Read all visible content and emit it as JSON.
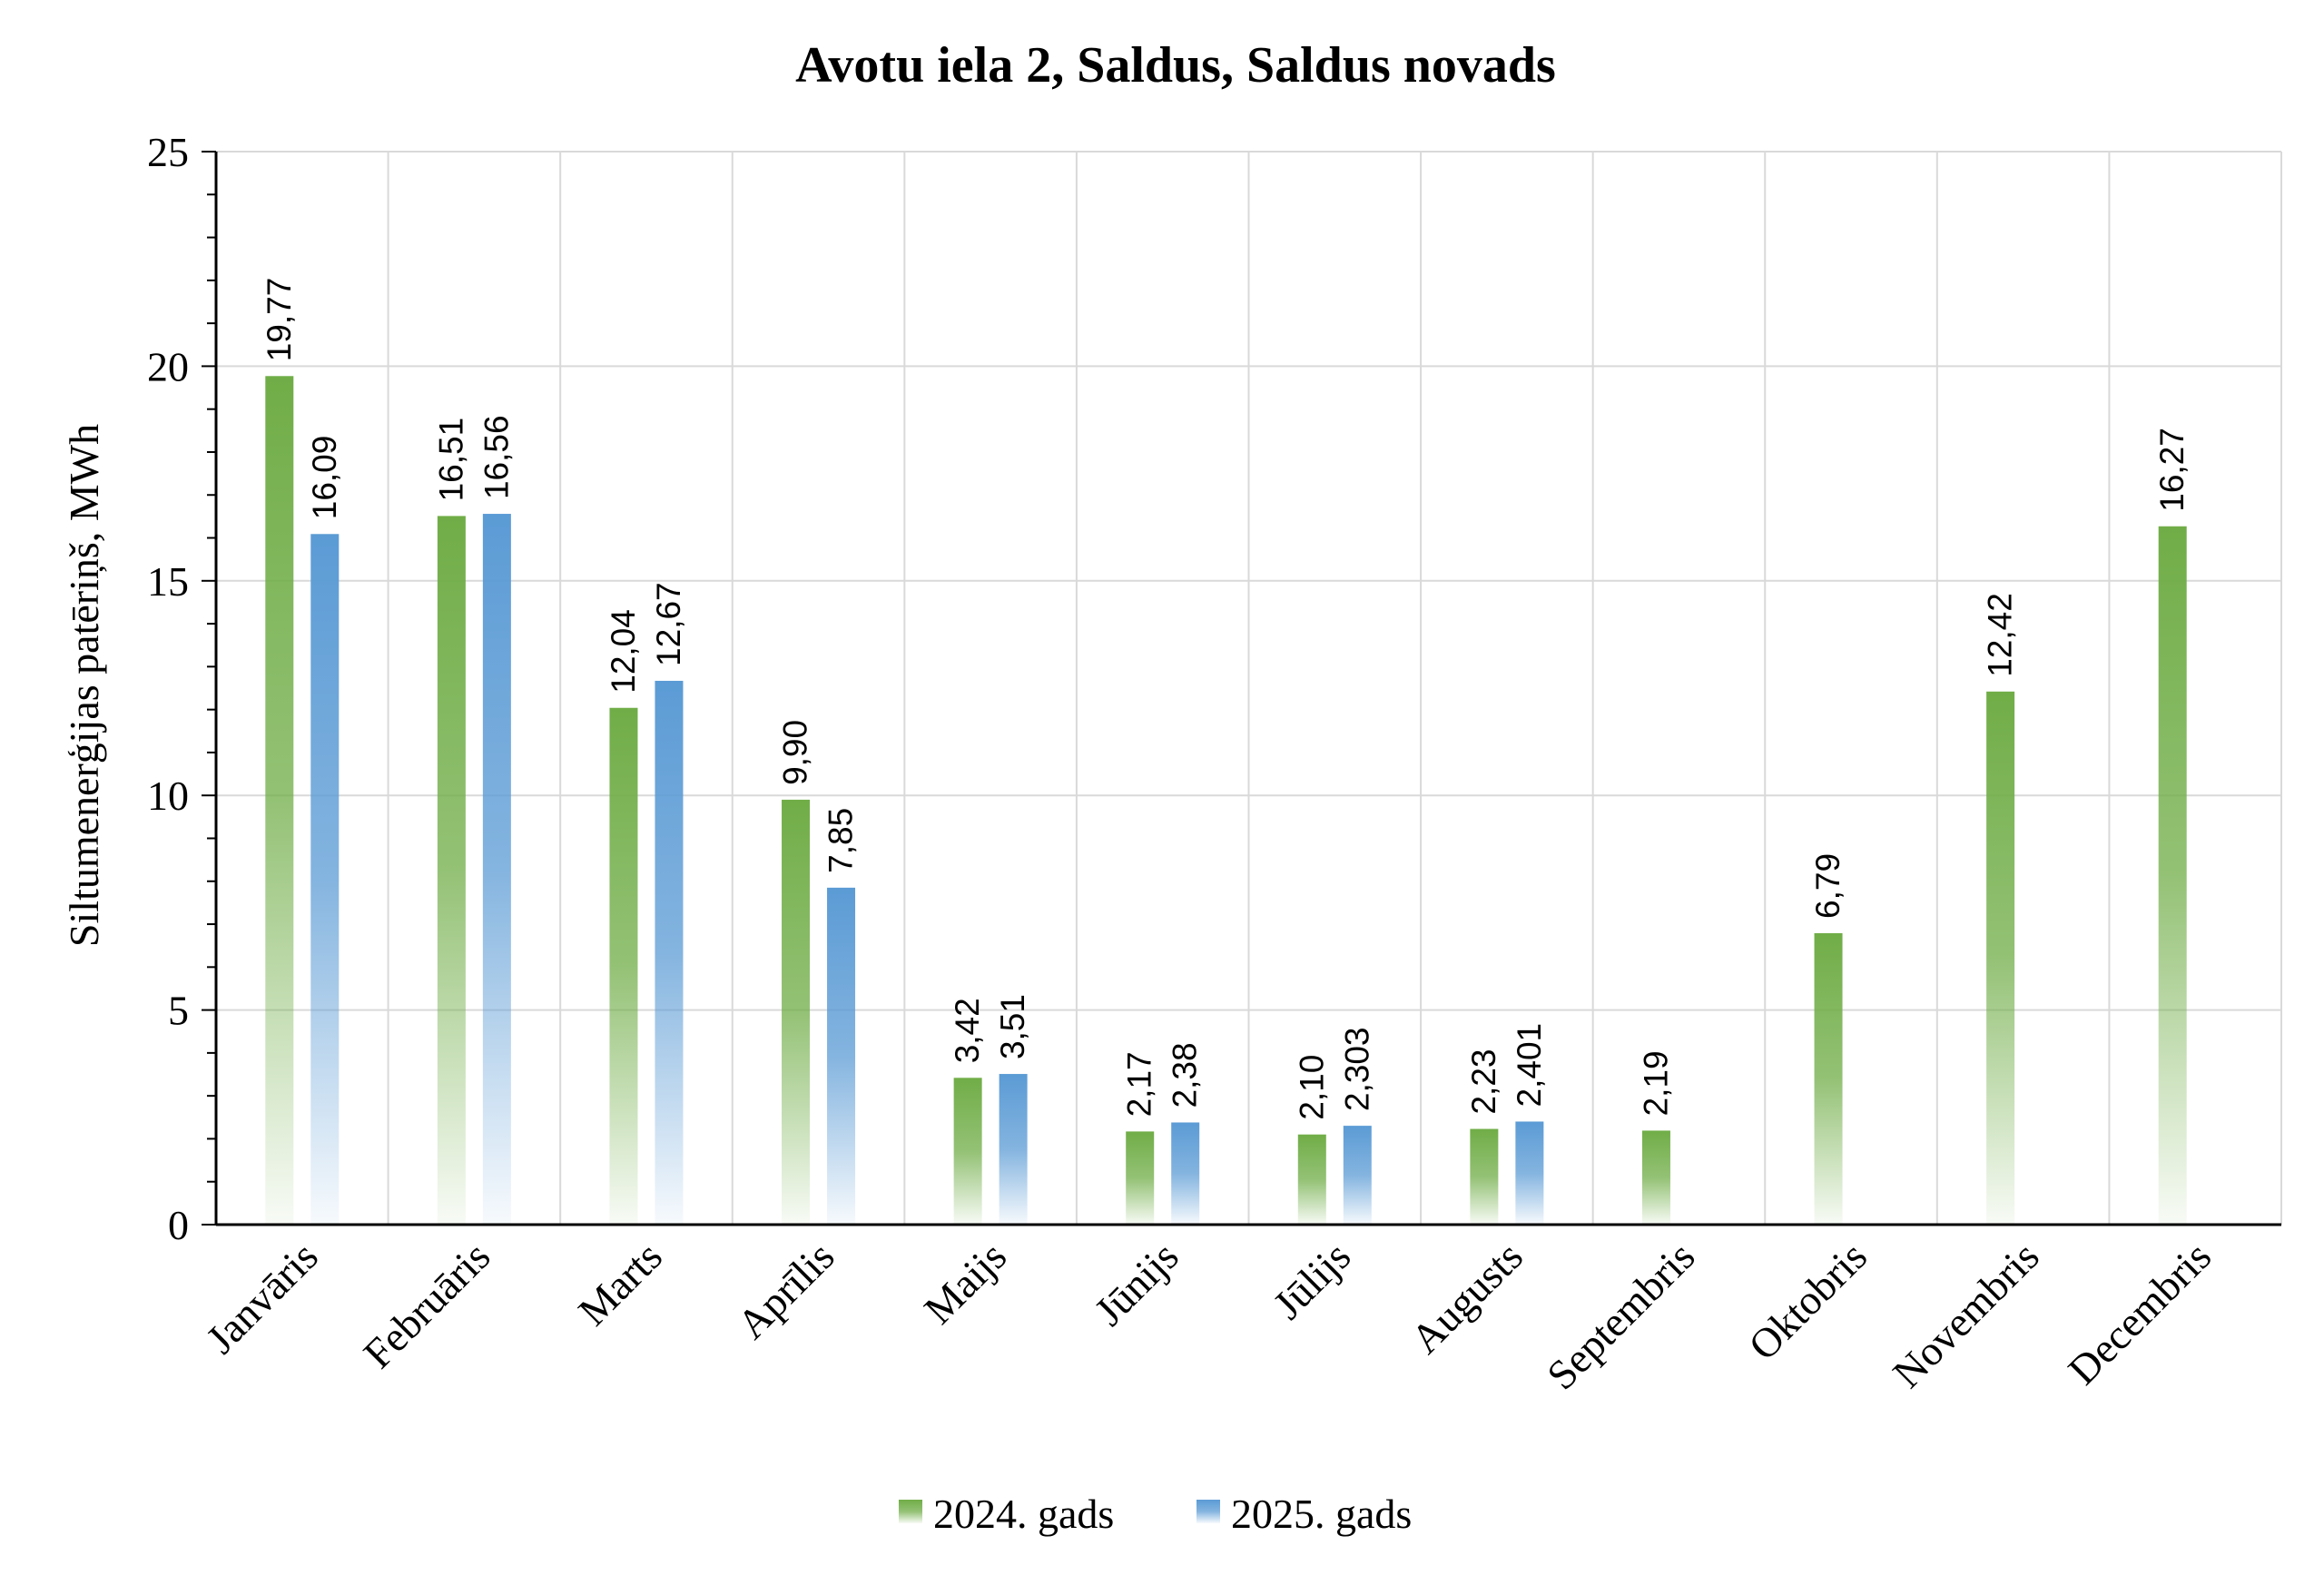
{
  "chart_data": {
    "type": "bar",
    "title": "Avotu iela 2, Saldus, Saldus novads",
    "xlabel": "",
    "ylabel": "Siltumenerģijas patēriņš, MWh",
    "ylim": [
      0,
      25
    ],
    "yticks": [
      "0",
      "5",
      "10",
      "15",
      "20",
      "25"
    ],
    "grid": true,
    "legend_position": "bottom",
    "categories": [
      "Janvāris",
      "Februāris",
      "Marts",
      "Aprīlis",
      "Maijs",
      "Jūnijs",
      "Jūlijs",
      "Augusts",
      "Septembris",
      "Oktobris",
      "Novembris",
      "Decembris"
    ],
    "series": [
      {
        "name": "2024. gads",
        "color": "#70ad47",
        "values": [
          19.77,
          16.51,
          12.04,
          9.9,
          3.42,
          2.17,
          2.1,
          2.23,
          2.19,
          6.79,
          12.42,
          16.27
        ],
        "labels": [
          "19,77",
          "16,51",
          "12,04",
          "9,90",
          "3,42",
          "2,17",
          "2,10",
          "2,23",
          "2,19",
          "6,79",
          "12,42",
          "16,27"
        ]
      },
      {
        "name": "2025. gads",
        "color": "#5b9bd5",
        "values": [
          16.09,
          16.56,
          12.67,
          7.85,
          3.51,
          2.38,
          2.303,
          2.401,
          null,
          null,
          null,
          null
        ],
        "labels": [
          "16,09",
          "16,56",
          "12,67",
          "7,85",
          "3,51",
          "2,38",
          "2,303",
          "2,401",
          null,
          null,
          null,
          null
        ]
      }
    ]
  }
}
